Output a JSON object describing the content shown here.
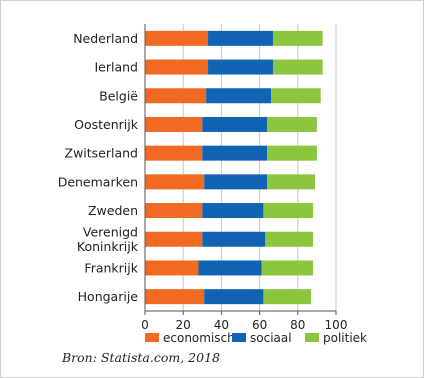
{
  "chart_data": {
    "type": "bar",
    "orientation": "horizontal",
    "stacked": true,
    "categories": [
      "Nederland",
      "Ierland",
      "België",
      "Oostenrijk",
      "Zwitserland",
      "Denemarken",
      "Zweden",
      "Verenigd Koninkrijk",
      "Frankrijk",
      "Hongarije"
    ],
    "category_lines": [
      [
        "Nederland"
      ],
      [
        "Ierland"
      ],
      [
        "België"
      ],
      [
        "Oostenrijk"
      ],
      [
        "Zwitserland"
      ],
      [
        "Denemarken"
      ],
      [
        "Zweden"
      ],
      [
        "Verenigd",
        "Koninkrijk"
      ],
      [
        "Frankrijk"
      ],
      [
        "Hongarije"
      ]
    ],
    "series": [
      {
        "name": "economisch",
        "color": "#f26a21",
        "values": [
          33,
          33,
          32,
          30,
          30,
          31,
          30,
          30,
          28,
          31
        ]
      },
      {
        "name": "sociaal",
        "color": "#1164b4",
        "values": [
          34,
          34,
          34,
          34,
          34,
          33,
          32,
          33,
          33,
          31
        ]
      },
      {
        "name": "politiek",
        "color": "#8cc63f",
        "values": [
          26,
          26,
          26,
          26,
          26,
          25,
          26,
          25,
          27,
          25
        ]
      }
    ],
    "xlim": [
      0,
      100
    ],
    "xticks": [
      0,
      20,
      40,
      60,
      80,
      100
    ],
    "grid": true,
    "legend_position": "bottom"
  },
  "source": "Bron: Statista.com, 2018"
}
